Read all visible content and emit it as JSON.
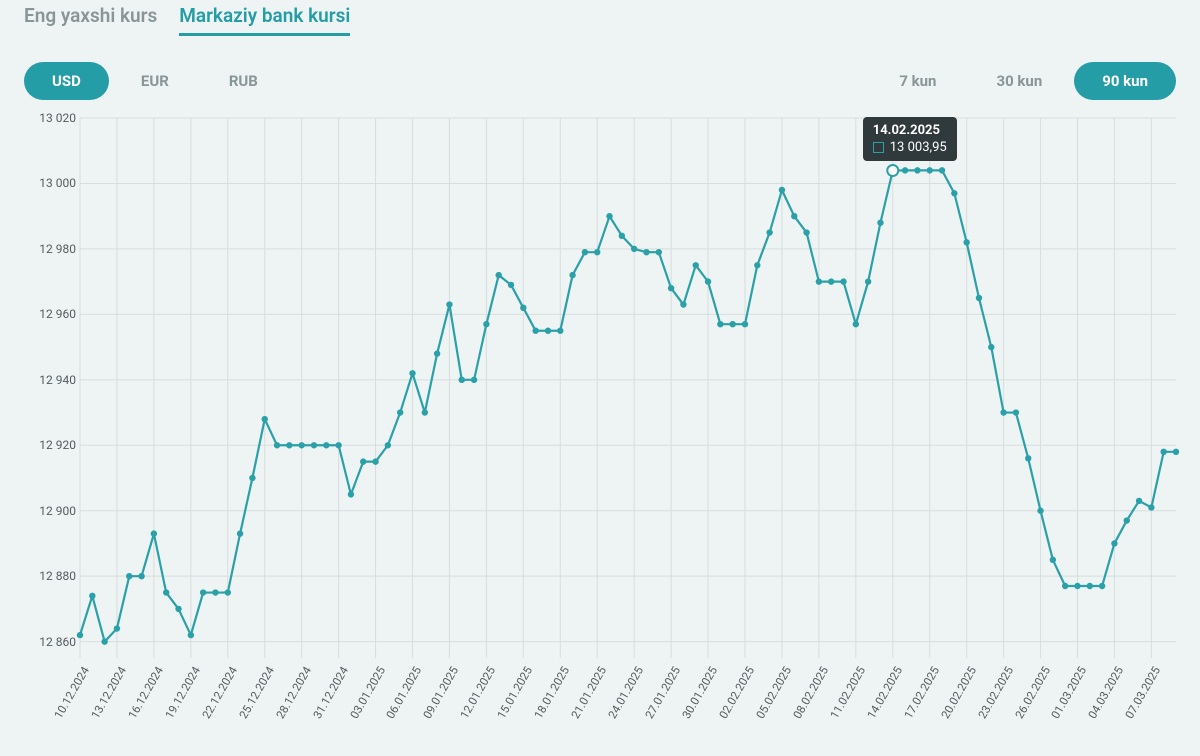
{
  "tabs": [
    {
      "label": "Eng yaxshi kurs",
      "active": false
    },
    {
      "label": "Markaziy bank kursi",
      "active": true
    }
  ],
  "currencies": [
    {
      "code": "USD",
      "active": true
    },
    {
      "code": "EUR",
      "active": false
    },
    {
      "code": "RUB",
      "active": false
    }
  ],
  "ranges": [
    {
      "label": "7 kun",
      "active": false
    },
    {
      "label": "30 kun",
      "active": false
    },
    {
      "label": "90 kun",
      "active": true
    }
  ],
  "colors": {
    "accent": "#249da7",
    "line": "#2aa0a8",
    "marker_fill": "#2aa0a8",
    "background": "#eef3f4",
    "grid": "#d8dddd",
    "axis_text": "#555d5f",
    "inactive_text": "#8a9597",
    "tooltip_bg": "#30393b",
    "tooltip_text": "#ffffff",
    "hover_marker": "#ffffff"
  },
  "chart": {
    "type": "line",
    "y_min": 12855,
    "y_max": 13020,
    "y_ticks": [
      12860,
      12880,
      12900,
      12920,
      12940,
      12960,
      12980,
      13000,
      13020
    ],
    "y_tick_labels": [
      "12 860",
      "12 880",
      "12 900",
      "12 920",
      "12 940",
      "12 960",
      "12 980",
      "13 000",
      "13 020"
    ],
    "x_tick_step": 3,
    "x_start_label": "10.12.2024",
    "line_width": 2.2,
    "marker_radius": 3.2,
    "dates": [
      "10.12.2024",
      "11.12.2024",
      "12.12.2024",
      "13.12.2024",
      "14.12.2024",
      "15.12.2024",
      "16.12.2024",
      "17.12.2024",
      "18.12.2024",
      "19.12.2024",
      "20.12.2024",
      "21.12.2024",
      "22.12.2024",
      "23.12.2024",
      "24.12.2024",
      "25.12.2024",
      "26.12.2024",
      "27.12.2024",
      "28.12.2024",
      "29.12.2024",
      "30.12.2024",
      "31.12.2024",
      "01.01.2025",
      "02.01.2025",
      "03.01.2025",
      "04.01.2025",
      "05.01.2025",
      "06.01.2025",
      "07.01.2025",
      "08.01.2025",
      "09.01.2025",
      "10.01.2025",
      "11.01.2025",
      "12.01.2025",
      "13.01.2025",
      "14.01.2025",
      "15.01.2025",
      "16.01.2025",
      "17.01.2025",
      "18.01.2025",
      "19.01.2025",
      "20.01.2025",
      "21.01.2025",
      "22.01.2025",
      "23.01.2025",
      "24.01.2025",
      "25.01.2025",
      "26.01.2025",
      "27.01.2025",
      "28.01.2025",
      "29.01.2025",
      "30.01.2025",
      "31.01.2025",
      "01.02.2025",
      "02.02.2025",
      "03.02.2025",
      "04.02.2025",
      "05.02.2025",
      "06.02.2025",
      "07.02.2025",
      "08.02.2025",
      "09.02.2025",
      "10.02.2025",
      "11.02.2025",
      "12.02.2025",
      "13.02.2025",
      "14.02.2025",
      "15.02.2025",
      "16.02.2025",
      "17.02.2025",
      "18.02.2025",
      "19.02.2025",
      "20.02.2025",
      "21.02.2025",
      "22.02.2025",
      "23.02.2025",
      "24.02.2025",
      "25.02.2025",
      "26.02.2025",
      "27.02.2025",
      "28.02.2025",
      "01.03.2025",
      "02.03.2025",
      "03.03.2025",
      "04.03.2025",
      "05.03.2025",
      "06.03.2025",
      "07.03.2025",
      "08.03.2025",
      "09.03.2025"
    ],
    "values": [
      12862,
      12874,
      12860,
      12864,
      12880,
      12880,
      12893,
      12875,
      12870,
      12862,
      12875,
      12875,
      12875,
      12893,
      12910,
      12928,
      12920,
      12920,
      12920,
      12920,
      12920,
      12920,
      12905,
      12915,
      12915,
      12920,
      12930,
      12942,
      12930,
      12948,
      12963,
      12940,
      12940,
      12957,
      12972,
      12969,
      12962,
      12955,
      12955,
      12955,
      12972,
      12979,
      12979,
      12990,
      12984,
      12980,
      12979,
      12979,
      12968,
      12963,
      12975,
      12970,
      12957,
      12957,
      12957,
      12975,
      12985,
      12998,
      12990,
      12985,
      12970,
      12970,
      12970,
      12957,
      12970,
      12988,
      13003.95,
      13004,
      13004,
      13004,
      13004,
      12997,
      12982,
      12965,
      12950,
      12930,
      12930,
      12916,
      12900,
      12885,
      12877,
      12877,
      12877,
      12877,
      12890,
      12897,
      12903,
      12901,
      12918,
      12918
    ]
  },
  "tooltip": {
    "index": 66,
    "date": "14.02.2025",
    "value_text": "13 003,95"
  }
}
